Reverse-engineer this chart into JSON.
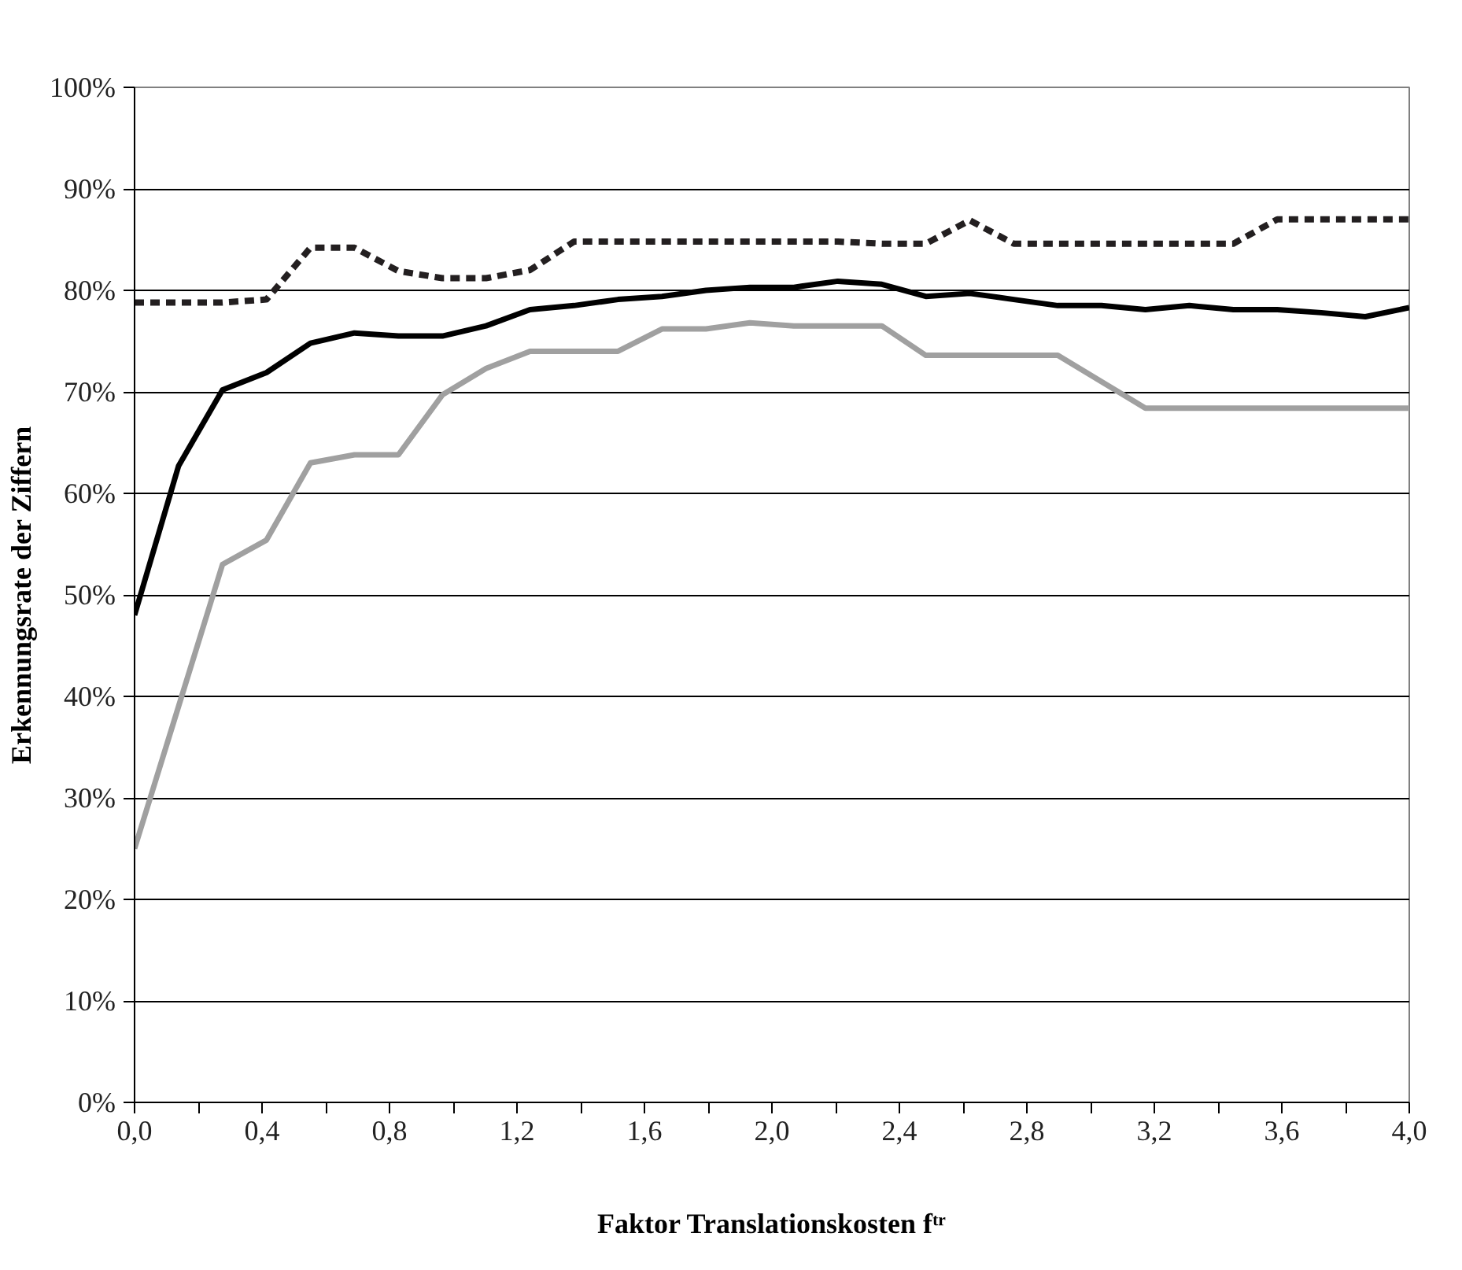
{
  "chart_data": {
    "type": "line",
    "xlabel": "Faktor Translationskosten fᵗʳ",
    "ylabel": "Erkennungsrate der Ziffern",
    "x": [
      0,
      0.138,
      0.276,
      0.414,
      0.552,
      0.69,
      0.828,
      0.966,
      1.103,
      1.241,
      1.379,
      1.517,
      1.655,
      1.793,
      1.931,
      2.069,
      2.207,
      2.345,
      2.483,
      2.621,
      2.759,
      2.897,
      3.034,
      3.172,
      3.31,
      3.448,
      3.586,
      3.724,
      3.862,
      4
    ],
    "series": [
      {
        "color": "#231f20",
        "line_style": "dashed",
        "values": [
          78.8,
          78.8,
          78.8,
          79.1,
          84.2,
          84.2,
          81.9,
          81.2,
          81.2,
          82.0,
          84.8,
          84.8,
          84.8,
          84.8,
          84.8,
          84.8,
          84.8,
          84.6,
          84.6,
          86.9,
          84.6,
          84.6,
          84.6,
          84.6,
          84.6,
          84.6,
          87.0,
          87.0,
          87.0,
          87.0
        ]
      },
      {
        "color": "#000000",
        "line_style": "solid",
        "values": [
          48.0,
          62.7,
          70.2,
          71.9,
          74.8,
          75.8,
          75.5,
          75.5,
          76.5,
          78.1,
          78.5,
          79.1,
          79.4,
          80.0,
          80.3,
          80.3,
          80.9,
          80.6,
          79.4,
          79.7,
          79.1,
          78.5,
          78.5,
          78.1,
          78.5,
          78.1,
          78.1,
          77.8,
          77.4,
          78.3
        ]
      },
      {
        "color": "#a0a0a0",
        "line_style": "solid",
        "values": [
          25.0,
          39.0,
          53.0,
          55.4,
          63.0,
          63.8,
          63.8,
          69.7,
          72.3,
          74.0,
          74.0,
          74.0,
          76.2,
          76.2,
          76.8,
          76.5,
          76.5,
          76.5,
          73.6,
          73.6,
          73.6,
          73.6,
          71.0,
          68.4,
          68.4,
          68.4,
          68.4,
          68.4,
          68.4,
          68.4
        ]
      }
    ],
    "xlim": [
      0,
      4
    ],
    "ylim": [
      0,
      100
    ],
    "xticks": [
      {
        "value": 0,
        "label": "0,0"
      },
      {
        "value": 0.2,
        "label": null
      },
      {
        "value": 0.4,
        "label": "0,4"
      },
      {
        "value": 0.6,
        "label": null
      },
      {
        "value": 0.8,
        "label": "0,8"
      },
      {
        "value": 1.0,
        "label": null
      },
      {
        "value": 1.2,
        "label": "1,2"
      },
      {
        "value": 1.4,
        "label": null
      },
      {
        "value": 1.6,
        "label": "1,6"
      },
      {
        "value": 1.8,
        "label": null
      },
      {
        "value": 2.0,
        "label": "2,0"
      },
      {
        "value": 2.2,
        "label": null
      },
      {
        "value": 2.4,
        "label": "2,4"
      },
      {
        "value": 2.6,
        "label": null
      },
      {
        "value": 2.8,
        "label": "2,8"
      },
      {
        "value": 3.0,
        "label": null
      },
      {
        "value": 3.2,
        "label": "3,2"
      },
      {
        "value": 3.4,
        "label": null
      },
      {
        "value": 3.6,
        "label": "3,6"
      },
      {
        "value": 3.8,
        "label": null
      },
      {
        "value": 4.0,
        "label": "4,0"
      }
    ],
    "yticks": [
      {
        "value": 0,
        "label": "0%"
      },
      {
        "value": 10,
        "label": "10%"
      },
      {
        "value": 20,
        "label": "20%"
      },
      {
        "value": 30,
        "label": "30%"
      },
      {
        "value": 40,
        "label": "40%"
      },
      {
        "value": 50,
        "label": "50%"
      },
      {
        "value": 60,
        "label": "60%"
      },
      {
        "value": 70,
        "label": "70%"
      },
      {
        "value": 80,
        "label": "80%"
      },
      {
        "value": 90,
        "label": "90%"
      },
      {
        "value": 100,
        "label": "100%"
      }
    ],
    "grid": "y",
    "marker": "none"
  }
}
